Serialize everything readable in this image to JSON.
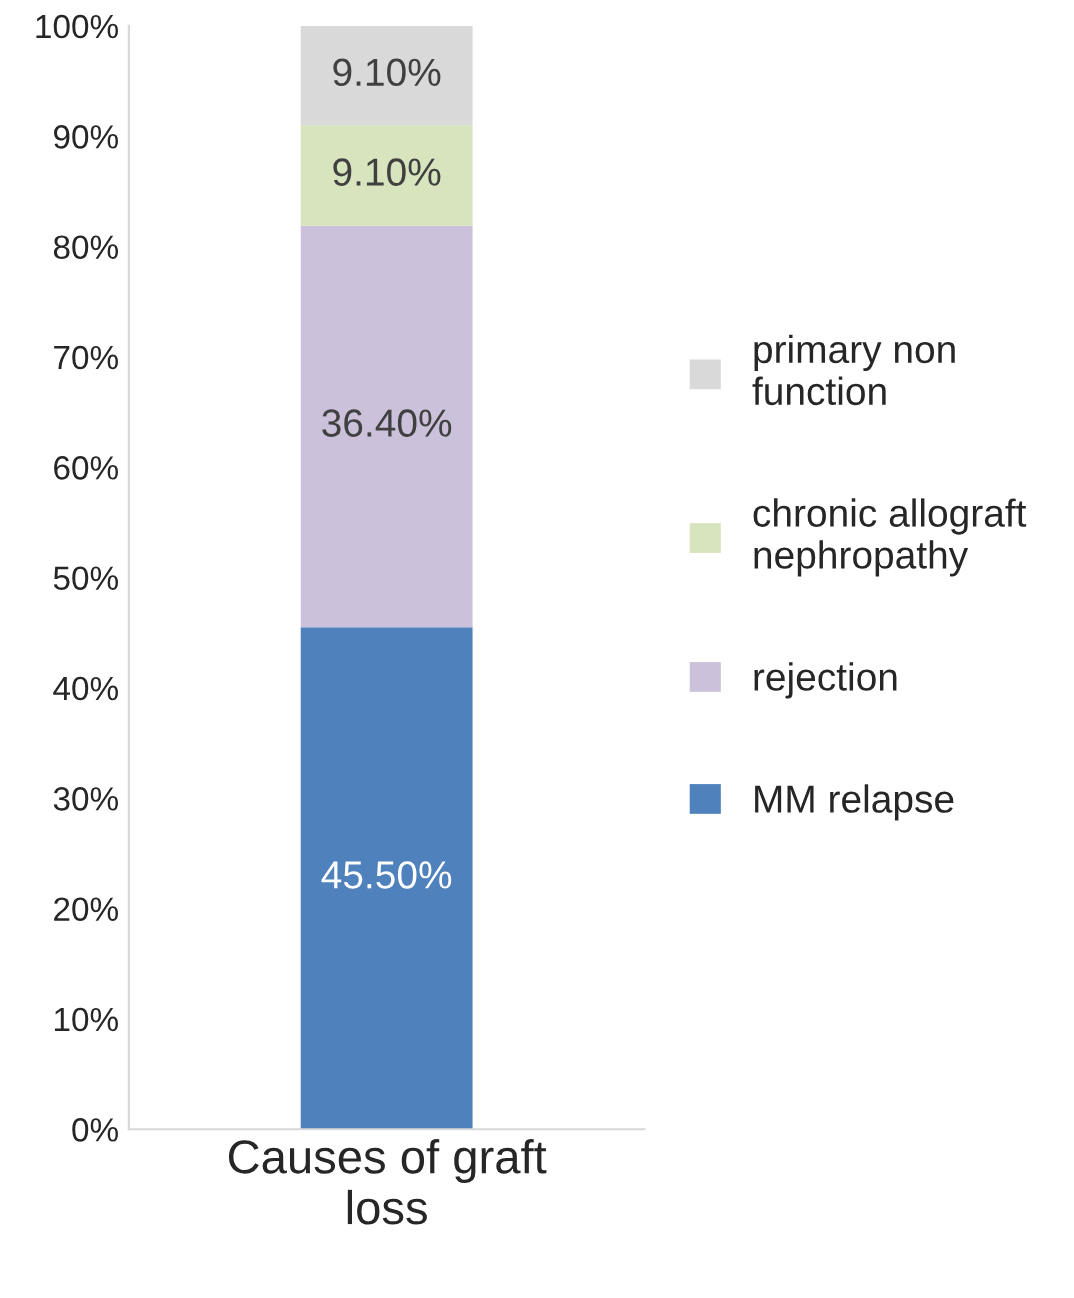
{
  "chart_data": {
    "type": "bar",
    "stacked": true,
    "categories": [
      "Causes of graft\nloss"
    ],
    "series": [
      {
        "name": "MM relapse",
        "color": "#4f81bd",
        "values": [
          45.5
        ],
        "value_labels": [
          "45.50%"
        ]
      },
      {
        "name": "rejection",
        "color": "#ccc1da",
        "values": [
          36.4
        ],
        "value_labels": [
          "36.40%"
        ]
      },
      {
        "name": "chronic allograft\nnephropathy",
        "color": "#d7e4bd",
        "values": [
          9.1
        ],
        "value_labels": [
          "9.10%"
        ]
      },
      {
        "name": "primary non\nfunction",
        "color": "#d9d9d9",
        "values": [
          9.1
        ],
        "value_labels": [
          "9.10%"
        ]
      }
    ],
    "ylim": [
      0,
      100
    ],
    "yticks": [
      {
        "value": 0,
        "label": "0%"
      },
      {
        "value": 10,
        "label": "10%"
      },
      {
        "value": 20,
        "label": "20%"
      },
      {
        "value": 30,
        "label": "30%"
      },
      {
        "value": 40,
        "label": "40%"
      },
      {
        "value": 50,
        "label": "50%"
      },
      {
        "value": 60,
        "label": "60%"
      },
      {
        "value": 70,
        "label": "70%"
      },
      {
        "value": 80,
        "label": "80%"
      },
      {
        "value": 90,
        "label": "90%"
      },
      {
        "value": 100,
        "label": "100%"
      }
    ],
    "legend": "right",
    "grid": false
  }
}
